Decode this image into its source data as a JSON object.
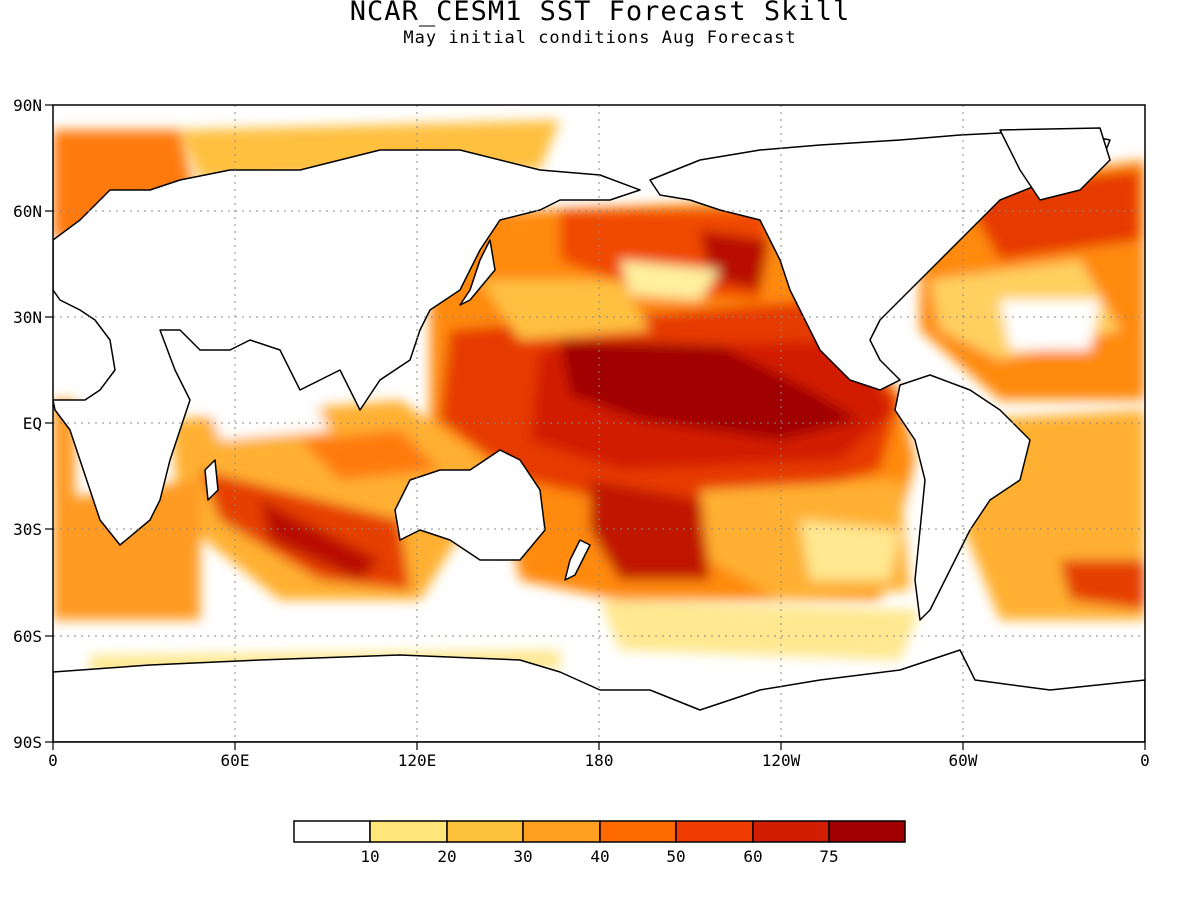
{
  "title": "NCAR_CESM1 SST Forecast Skill",
  "subtitle": "May initial conditions  Aug Forecast",
  "map": {
    "lat_ticks": [
      "90N",
      "60N",
      "30N",
      "EQ",
      "30S",
      "60S",
      "90S"
    ],
    "lon_ticks": [
      "0",
      "60E",
      "120E",
      "180",
      "120W",
      "60W",
      "0"
    ],
    "gridlines": true,
    "gridline_style": "dotted"
  },
  "colorbar": {
    "colors": [
      "#ffffff",
      "#ffe57a",
      "#ffc23c",
      "#ffa01e",
      "#ff6a00",
      "#f03c00",
      "#d21e00",
      "#a00000"
    ],
    "labels": [
      "10",
      "20",
      "30",
      "40",
      "50",
      "60",
      "75"
    ]
  }
}
